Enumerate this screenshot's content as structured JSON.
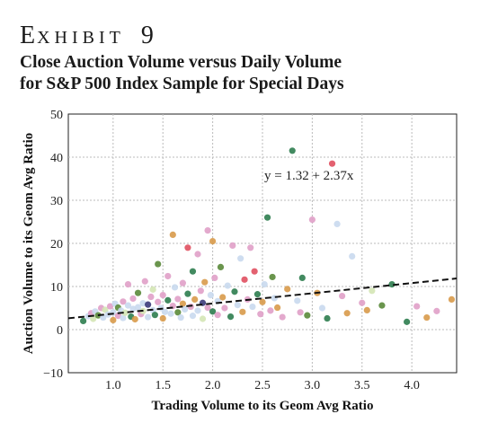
{
  "header": {
    "exhibit_first": "E",
    "exhibit_rest": "XHIBIT",
    "exhibit_number": "9",
    "subtitle_line1": "Close Auction Volume versus Daily Volume",
    "subtitle_line2": "for S&P 500 Index Sample for Special Days"
  },
  "chart_data": {
    "type": "scatter",
    "xlabel": "Trading Volume to its Geom Avg Ratio",
    "ylabel": "Auction Volume to its Geom Avg Ratio",
    "xlim": [
      0.55,
      4.45
    ],
    "ylim": [
      -10,
      50
    ],
    "xticks": [
      "1.0",
      "1.5",
      "2.0",
      "2.5",
      "3.0",
      "3.5",
      "4.0"
    ],
    "yticks": [
      "50",
      "40",
      "30",
      "20",
      "10",
      "0",
      "−10"
    ],
    "grid": true,
    "fit_line": {
      "intercept": 1.32,
      "slope": 2.37,
      "label": "y = 1.32 + 2.37x"
    },
    "points": [
      {
        "x": 0.7,
        "y": 2.0,
        "c": "#2e7d4f"
      },
      {
        "x": 0.75,
        "y": 3.1,
        "c": "#c9d9ee"
      },
      {
        "x": 0.78,
        "y": 3.8,
        "c": "#e0a0c8"
      },
      {
        "x": 0.8,
        "y": 2.5,
        "c": "#d4e6b5"
      },
      {
        "x": 0.82,
        "y": 4.2,
        "c": "#c9d9ee"
      },
      {
        "x": 0.85,
        "y": 3.3,
        "c": "#5a8a3a"
      },
      {
        "x": 0.88,
        "y": 5.0,
        "c": "#e0a0c8"
      },
      {
        "x": 0.9,
        "y": 2.8,
        "c": "#c9d9ee"
      },
      {
        "x": 0.92,
        "y": 4.6,
        "c": "#d4e6b5"
      },
      {
        "x": 0.95,
        "y": 3.5,
        "c": "#c9d9ee"
      },
      {
        "x": 0.97,
        "y": 5.4,
        "c": "#e0a0c8"
      },
      {
        "x": 1.0,
        "y": 4.0,
        "c": "#c9d9ee"
      },
      {
        "x": 1.0,
        "y": 2.2,
        "c": "#d89a4a"
      },
      {
        "x": 1.02,
        "y": 6.0,
        "c": "#c9d9ee"
      },
      {
        "x": 1.05,
        "y": 3.2,
        "c": "#e0a0c8"
      },
      {
        "x": 1.05,
        "y": 5.1,
        "c": "#5a8a3a"
      },
      {
        "x": 1.08,
        "y": 4.4,
        "c": "#c9d9ee"
      },
      {
        "x": 1.1,
        "y": 2.7,
        "c": "#c9d9ee"
      },
      {
        "x": 1.1,
        "y": 6.5,
        "c": "#e0a0c8"
      },
      {
        "x": 1.12,
        "y": 3.9,
        "c": "#d4e6b5"
      },
      {
        "x": 1.15,
        "y": 5.6,
        "c": "#c9d9ee"
      },
      {
        "x": 1.15,
        "y": 10.5,
        "c": "#e0a0c8"
      },
      {
        "x": 1.18,
        "y": 3.0,
        "c": "#2e7d4f"
      },
      {
        "x": 1.2,
        "y": 4.8,
        "c": "#c9d9ee"
      },
      {
        "x": 1.2,
        "y": 7.2,
        "c": "#e0a0c8"
      },
      {
        "x": 1.22,
        "y": 2.4,
        "c": "#d89a4a"
      },
      {
        "x": 1.25,
        "y": 5.2,
        "c": "#c9d9ee"
      },
      {
        "x": 1.25,
        "y": 8.5,
        "c": "#5a8a3a"
      },
      {
        "x": 1.28,
        "y": 3.6,
        "c": "#e0a0c8"
      },
      {
        "x": 1.3,
        "y": 6.1,
        "c": "#c9d9ee"
      },
      {
        "x": 1.3,
        "y": 4.3,
        "c": "#d4e6b5"
      },
      {
        "x": 1.32,
        "y": 11.2,
        "c": "#e0a0c8"
      },
      {
        "x": 1.35,
        "y": 5.8,
        "c": "#3b3a7a"
      },
      {
        "x": 1.35,
        "y": 2.9,
        "c": "#c9d9ee"
      },
      {
        "x": 1.38,
        "y": 7.6,
        "c": "#e0a0c8"
      },
      {
        "x": 1.4,
        "y": 4.5,
        "c": "#c9d9ee"
      },
      {
        "x": 1.4,
        "y": 9.3,
        "c": "#d4e6b5"
      },
      {
        "x": 1.42,
        "y": 3.4,
        "c": "#2e7d4f"
      },
      {
        "x": 1.45,
        "y": 6.4,
        "c": "#e0a0c8"
      },
      {
        "x": 1.45,
        "y": 15.2,
        "c": "#5a8a3a"
      },
      {
        "x": 1.48,
        "y": 5.0,
        "c": "#c9d9ee"
      },
      {
        "x": 1.5,
        "y": 2.6,
        "c": "#d89a4a"
      },
      {
        "x": 1.5,
        "y": 8.0,
        "c": "#e0a0c8"
      },
      {
        "x": 1.52,
        "y": 4.1,
        "c": "#c9d9ee"
      },
      {
        "x": 1.55,
        "y": 12.4,
        "c": "#e0a0c8"
      },
      {
        "x": 1.55,
        "y": 6.8,
        "c": "#2e7d4f"
      },
      {
        "x": 1.58,
        "y": 3.7,
        "c": "#c9d9ee"
      },
      {
        "x": 1.6,
        "y": 22.0,
        "c": "#d89a4a"
      },
      {
        "x": 1.6,
        "y": 5.5,
        "c": "#e0a0c8"
      },
      {
        "x": 1.62,
        "y": 9.8,
        "c": "#c9d9ee"
      },
      {
        "x": 1.65,
        "y": 4.0,
        "c": "#5a8a3a"
      },
      {
        "x": 1.65,
        "y": 7.1,
        "c": "#e0a0c8"
      },
      {
        "x": 1.68,
        "y": 2.8,
        "c": "#c9d9ee"
      },
      {
        "x": 1.7,
        "y": 6.0,
        "c": "#d89a4a"
      },
      {
        "x": 1.7,
        "y": 10.8,
        "c": "#e0a0c8"
      },
      {
        "x": 1.72,
        "y": 4.7,
        "c": "#c9d9ee"
      },
      {
        "x": 1.75,
        "y": 19.0,
        "c": "#e05060"
      },
      {
        "x": 1.75,
        "y": 8.3,
        "c": "#2e7d4f"
      },
      {
        "x": 1.78,
        "y": 5.3,
        "c": "#e0a0c8"
      },
      {
        "x": 1.8,
        "y": 3.2,
        "c": "#c9d9ee"
      },
      {
        "x": 1.8,
        "y": 13.5,
        "c": "#2e7d4f"
      },
      {
        "x": 1.82,
        "y": 7.0,
        "c": "#d89a4a"
      },
      {
        "x": 1.85,
        "y": 17.5,
        "c": "#e0a0c8"
      },
      {
        "x": 1.85,
        "y": 4.4,
        "c": "#c9d9ee"
      },
      {
        "x": 1.88,
        "y": 9.0,
        "c": "#e0a0c8"
      },
      {
        "x": 1.9,
        "y": 6.2,
        "c": "#3b3a7a"
      },
      {
        "x": 1.9,
        "y": 2.5,
        "c": "#d4e6b5"
      },
      {
        "x": 1.92,
        "y": 11.0,
        "c": "#d89a4a"
      },
      {
        "x": 1.95,
        "y": 5.1,
        "c": "#e0a0c8"
      },
      {
        "x": 1.95,
        "y": 23.0,
        "c": "#e0a0c8"
      },
      {
        "x": 1.98,
        "y": 8.0,
        "c": "#c9d9ee"
      },
      {
        "x": 2.0,
        "y": 20.5,
        "c": "#d89a4a"
      },
      {
        "x": 2.0,
        "y": 4.2,
        "c": "#2e7d4f"
      },
      {
        "x": 2.02,
        "y": 12.0,
        "c": "#e0a0c8"
      },
      {
        "x": 2.05,
        "y": 6.6,
        "c": "#c9d9ee"
      },
      {
        "x": 2.05,
        "y": 3.4,
        "c": "#e0a0c8"
      },
      {
        "x": 2.08,
        "y": 14.5,
        "c": "#5a8a3a"
      },
      {
        "x": 2.1,
        "y": 7.5,
        "c": "#d89a4a"
      },
      {
        "x": 2.12,
        "y": 5.0,
        "c": "#e0a0c8"
      },
      {
        "x": 2.15,
        "y": 10.2,
        "c": "#c9d9ee"
      },
      {
        "x": 2.18,
        "y": 3.0,
        "c": "#2e7d4f"
      },
      {
        "x": 2.2,
        "y": 19.5,
        "c": "#e0a0c8"
      },
      {
        "x": 2.22,
        "y": 8.8,
        "c": "#2e7d4f"
      },
      {
        "x": 2.25,
        "y": 5.7,
        "c": "#c9d9ee"
      },
      {
        "x": 2.28,
        "y": 16.5,
        "c": "#c9d9ee"
      },
      {
        "x": 2.3,
        "y": 4.1,
        "c": "#d89a4a"
      },
      {
        "x": 2.32,
        "y": 11.6,
        "c": "#e05060"
      },
      {
        "x": 2.35,
        "y": 7.0,
        "c": "#e0a0c8"
      },
      {
        "x": 2.38,
        "y": 19.0,
        "c": "#e0a0c8"
      },
      {
        "x": 2.4,
        "y": 5.3,
        "c": "#c9d9ee"
      },
      {
        "x": 2.42,
        "y": 13.5,
        "c": "#e05060"
      },
      {
        "x": 2.45,
        "y": 8.2,
        "c": "#2e7d4f"
      },
      {
        "x": 2.48,
        "y": 3.6,
        "c": "#e0a0c8"
      },
      {
        "x": 2.5,
        "y": 6.4,
        "c": "#d89a4a"
      },
      {
        "x": 2.52,
        "y": 10.5,
        "c": "#c9d9ee"
      },
      {
        "x": 2.55,
        "y": 26.0,
        "c": "#2e7d4f"
      },
      {
        "x": 2.58,
        "y": 4.4,
        "c": "#e0a0c8"
      },
      {
        "x": 2.6,
        "y": 12.2,
        "c": "#5a8a3a"
      },
      {
        "x": 2.62,
        "y": 7.3,
        "c": "#c9d9ee"
      },
      {
        "x": 2.65,
        "y": 5.1,
        "c": "#d89a4a"
      },
      {
        "x": 2.7,
        "y": 2.9,
        "c": "#e0a0c8"
      },
      {
        "x": 2.75,
        "y": 9.4,
        "c": "#d89a4a"
      },
      {
        "x": 2.8,
        "y": 41.5,
        "c": "#2e7d4f"
      },
      {
        "x": 2.85,
        "y": 6.7,
        "c": "#c9d9ee"
      },
      {
        "x": 2.88,
        "y": 4.0,
        "c": "#e0a0c8"
      },
      {
        "x": 2.9,
        "y": 12.0,
        "c": "#2e7d4f"
      },
      {
        "x": 2.95,
        "y": 3.3,
        "c": "#5a8a3a"
      },
      {
        "x": 3.0,
        "y": 25.5,
        "c": "#e0a0c8"
      },
      {
        "x": 3.05,
        "y": 8.5,
        "c": "#d89a4a"
      },
      {
        "x": 3.1,
        "y": 5.0,
        "c": "#c9d9ee"
      },
      {
        "x": 3.15,
        "y": 2.6,
        "c": "#2e7d4f"
      },
      {
        "x": 3.2,
        "y": 38.5,
        "c": "#e05060"
      },
      {
        "x": 3.25,
        "y": 24.5,
        "c": "#c9d9ee"
      },
      {
        "x": 3.3,
        "y": 7.8,
        "c": "#e0a0c8"
      },
      {
        "x": 3.35,
        "y": 3.8,
        "c": "#d89a4a"
      },
      {
        "x": 3.4,
        "y": 17.0,
        "c": "#c9d9ee"
      },
      {
        "x": 3.5,
        "y": 6.2,
        "c": "#e0a0c8"
      },
      {
        "x": 3.55,
        "y": 4.5,
        "c": "#d89a4a"
      },
      {
        "x": 3.6,
        "y": 9.0,
        "c": "#d4e6b5"
      },
      {
        "x": 3.7,
        "y": 5.6,
        "c": "#5a8a3a"
      },
      {
        "x": 3.8,
        "y": 10.5,
        "c": "#2e7d4f"
      },
      {
        "x": 3.95,
        "y": 1.8,
        "c": "#2e7d4f"
      },
      {
        "x": 4.05,
        "y": 5.4,
        "c": "#e0a0c8"
      },
      {
        "x": 4.15,
        "y": 2.8,
        "c": "#d89a4a"
      },
      {
        "x": 4.25,
        "y": 4.3,
        "c": "#e0a0c8"
      },
      {
        "x": 4.4,
        "y": 7.0,
        "c": "#d89a4a"
      }
    ]
  }
}
